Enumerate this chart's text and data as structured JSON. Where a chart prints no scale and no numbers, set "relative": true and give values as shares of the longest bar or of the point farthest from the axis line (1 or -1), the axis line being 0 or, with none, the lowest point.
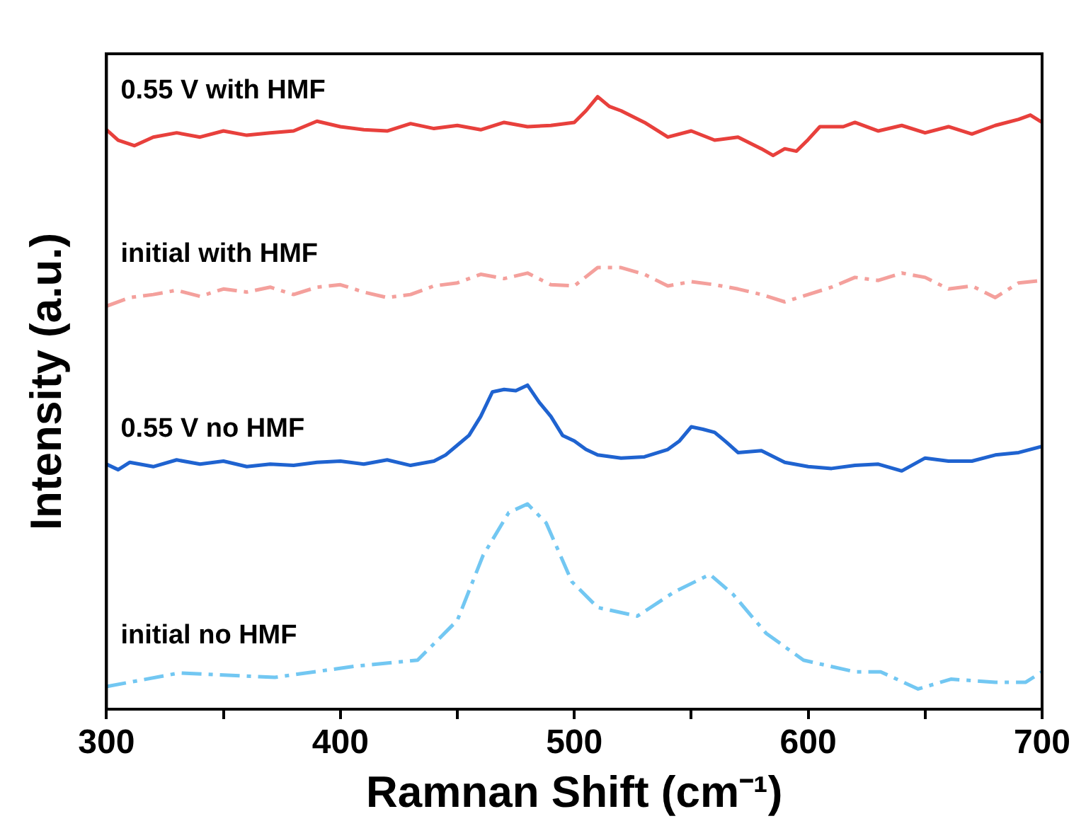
{
  "chart_data": {
    "type": "line",
    "xlabel": "Ramnan Shift (cm⁻¹)",
    "ylabel": "Intensity (a.u.)",
    "relative": true,
    "xlim": [
      300,
      700
    ],
    "xticks": [
      300,
      {
        "value": 350,
        "label": null
      },
      400,
      {
        "value": 450,
        "label": null
      },
      500,
      {
        "value": 550,
        "label": null
      },
      600,
      {
        "value": 650,
        "label": null
      },
      700
    ],
    "grid": false,
    "legend": false,
    "marker": "none",
    "series": [
      {
        "name": "0.55 V with HMF",
        "color": "#e8403c",
        "line_style": "solid",
        "x": [
          300,
          305,
          312,
          320,
          330,
          340,
          350,
          360,
          370,
          380,
          390,
          400,
          410,
          420,
          430,
          440,
          450,
          460,
          470,
          480,
          490,
          500,
          505,
          510,
          515,
          520,
          530,
          540,
          550,
          560,
          570,
          580,
          585,
          590,
          595,
          600,
          605,
          615,
          620,
          630,
          640,
          650,
          660,
          670,
          680,
          690,
          695,
          700
        ],
        "values": [
          0.946,
          0.929,
          0.92,
          0.934,
          0.941,
          0.934,
          0.944,
          0.937,
          0.941,
          0.944,
          0.96,
          0.951,
          0.946,
          0.944,
          0.956,
          0.948,
          0.953,
          0.946,
          0.958,
          0.951,
          0.953,
          0.958,
          0.977,
          1.0,
          0.984,
          0.977,
          0.958,
          0.934,
          0.944,
          0.929,
          0.934,
          0.915,
          0.904,
          0.915,
          0.911,
          0.93,
          0.951,
          0.951,
          0.958,
          0.944,
          0.953,
          0.941,
          0.951,
          0.939,
          0.953,
          0.963,
          0.97,
          0.958
        ]
      },
      {
        "name": "initial with HMF",
        "color": "#f4a09c",
        "line_style": "dashed",
        "x": [
          300,
          310,
          320,
          330,
          340,
          350,
          360,
          370,
          380,
          390,
          400,
          410,
          420,
          430,
          440,
          450,
          460,
          470,
          480,
          490,
          500,
          510,
          520,
          530,
          540,
          550,
          560,
          570,
          580,
          590,
          600,
          610,
          620,
          630,
          640,
          650,
          660,
          670,
          680,
          690,
          700
        ],
        "values": [
          0.658,
          0.672,
          0.677,
          0.684,
          0.674,
          0.686,
          0.681,
          0.689,
          0.677,
          0.689,
          0.693,
          0.681,
          0.672,
          0.677,
          0.691,
          0.696,
          0.71,
          0.703,
          0.712,
          0.693,
          0.691,
          0.721,
          0.721,
          0.71,
          0.691,
          0.698,
          0.693,
          0.686,
          0.677,
          0.665,
          0.677,
          0.689,
          0.705,
          0.7,
          0.712,
          0.705,
          0.686,
          0.691,
          0.672,
          0.696,
          0.7
        ]
      },
      {
        "name": "0.55 V no HMF",
        "color": "#1f63d0",
        "line_style": "solid",
        "x": [
          300,
          305,
          310,
          320,
          330,
          340,
          350,
          360,
          370,
          380,
          390,
          400,
          410,
          420,
          430,
          440,
          445,
          450,
          455,
          460,
          465,
          470,
          475,
          480,
          485,
          490,
          495,
          500,
          505,
          510,
          520,
          530,
          540,
          545,
          550,
          555,
          560,
          565,
          570,
          580,
          590,
          600,
          610,
          620,
          630,
          640,
          650,
          660,
          670,
          680,
          690,
          700
        ],
        "values": [
          0.4,
          0.391,
          0.403,
          0.396,
          0.407,
          0.4,
          0.405,
          0.396,
          0.4,
          0.398,
          0.403,
          0.405,
          0.4,
          0.407,
          0.398,
          0.405,
          0.415,
          0.431,
          0.447,
          0.478,
          0.518,
          0.522,
          0.52,
          0.529,
          0.501,
          0.478,
          0.447,
          0.438,
          0.424,
          0.415,
          0.41,
          0.412,
          0.424,
          0.438,
          0.461,
          0.457,
          0.452,
          0.436,
          0.419,
          0.422,
          0.403,
          0.396,
          0.393,
          0.398,
          0.4,
          0.389,
          0.41,
          0.405,
          0.405,
          0.415,
          0.419,
          0.429
        ]
      },
      {
        "name": "initial no HMF",
        "color": "#72c7f2",
        "line_style": "dashed",
        "x": [
          300,
          331,
          372,
          406,
          433,
          450,
          461,
          472,
          480,
          488,
          499,
          510,
          527,
          543,
          558,
          568,
          582,
          598,
          620,
          631,
          647,
          661,
          680,
          693,
          700
        ],
        "values": [
          0.037,
          0.059,
          0.052,
          0.07,
          0.08,
          0.145,
          0.251,
          0.321,
          0.335,
          0.304,
          0.208,
          0.166,
          0.152,
          0.192,
          0.22,
          0.187,
          0.124,
          0.08,
          0.061,
          0.061,
          0.033,
          0.049,
          0.044,
          0.044,
          0.061
        ]
      }
    ]
  }
}
